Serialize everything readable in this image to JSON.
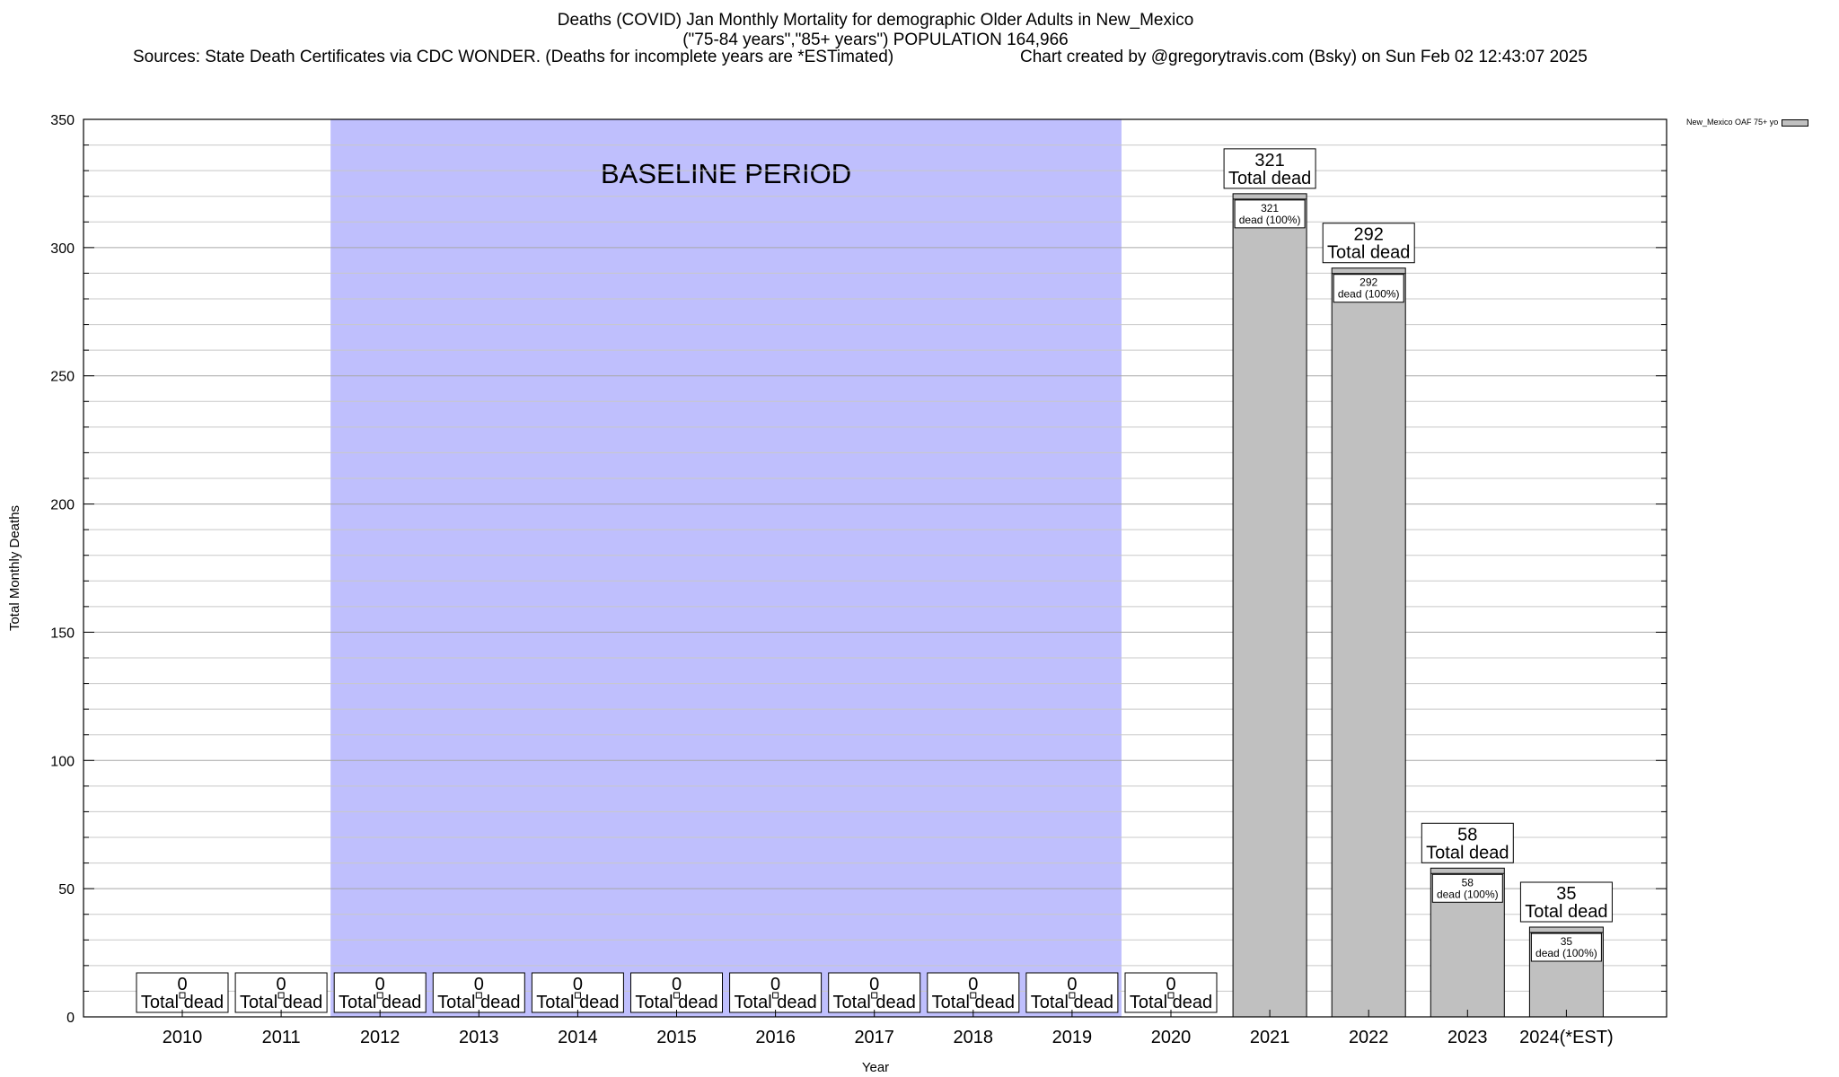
{
  "header": {
    "title_line1": "Deaths (COVID) Jan Monthly Mortality for demographic Older Adults in New_Mexico",
    "title_line2": "(\"75-84 years\",\"85+ years\") POPULATION 164,966",
    "sources": "Sources: State Death Certificates via CDC WONDER. (Deaths for incomplete years are *ESTimated)",
    "credit": "Chart created by @gregorytravis.com (Bsky) on Sun Feb 02 12:43:07 2025"
  },
  "chart_data": {
    "type": "bar",
    "xlabel": "Year",
    "ylabel": "Total Monthly Deaths",
    "ylim": [
      0,
      350
    ],
    "yticks": [
      0,
      50,
      100,
      150,
      200,
      250,
      300,
      350
    ],
    "minor_tick_step": 10,
    "grid": true,
    "legend_position": "top-right (outside plot)",
    "categories": [
      "2010",
      "2011",
      "2012",
      "2013",
      "2014",
      "2015",
      "2016",
      "2017",
      "2018",
      "2019",
      "2020",
      "2021",
      "2022",
      "2023",
      "2024(*EST)"
    ],
    "series": [
      {
        "name": "New_Mexico OAF 75+ yo",
        "color": "#c0c0c0",
        "values": [
          0,
          0,
          0,
          0,
          0,
          0,
          0,
          0,
          0,
          0,
          0,
          321,
          292,
          58,
          35
        ]
      }
    ],
    "total_label_suffix": "Total dead",
    "segment_label_suffix": "dead (100%)",
    "baseline": {
      "label": "BASELINE PERIOD",
      "from": "2012",
      "to": "2019",
      "color": "#bfbffd"
    }
  }
}
